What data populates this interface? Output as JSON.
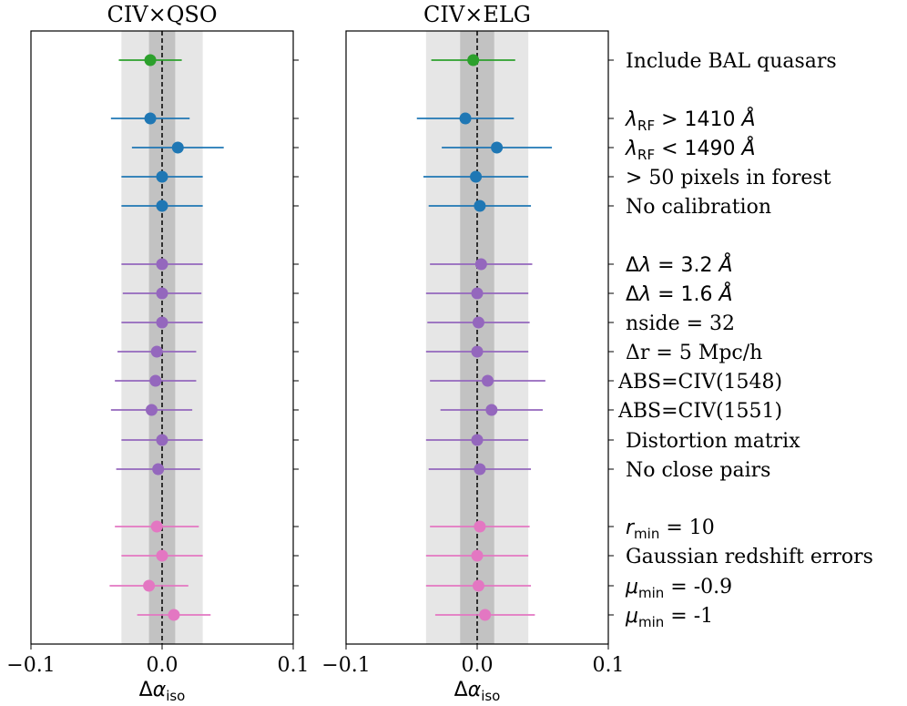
{
  "chart_data": {
    "type": "scatter",
    "subtype": "forest-plot-with-errorbars",
    "xlabel": {
      "base": "Δα",
      "sub": "iso"
    },
    "xlim": [
      -0.1,
      0.1
    ],
    "xticks": [
      -0.1,
      0.0,
      0.1
    ],
    "xtick_labels": [
      "−0.1",
      "0.0",
      "0.1"
    ],
    "reference_line": 0.0,
    "group_colors": {
      "green": "#2ca02c",
      "blue": "#1f77b4",
      "purple": "#9467bd",
      "pink": "#e377c2"
    },
    "band_colors": {
      "outer": "#e6e6e6",
      "inner": "#c2c2c2",
      "line": "#000000"
    },
    "rows": [
      {
        "label": "Include BAL quasars",
        "group": "green"
      },
      {
        "label_html": "<tspan font-style='italic' font-family='DejaVu Sans'>λ</tspan><tspan font-family='DejaVu Sans' font-size='15' dy='5'>RF</tspan><tspan font-family='DejaVu Sans' dy='-5'> &gt; 1410 </tspan><tspan font-style='italic' font-family='DejaVu Sans'>Å</tspan>",
        "label": "λRF > 1410 Å",
        "group": "blue"
      },
      {
        "label_html": "<tspan font-style='italic' font-family='DejaVu Sans'>λ</tspan><tspan font-family='DejaVu Sans' font-size='15' dy='5'>RF</tspan><tspan font-family='DejaVu Sans' dy='-5'> &lt; 1490 </tspan><tspan font-style='italic' font-family='DejaVu Sans'>Å</tspan>",
        "label": "λRF < 1490 Å",
        "group": "blue"
      },
      {
        "label": "> 50 pixels in forest",
        "group": "blue"
      },
      {
        "label": "No calibration",
        "group": "blue"
      },
      {
        "label_html": "<tspan font-family='DejaVu Sans'>Δ</tspan><tspan font-style='italic' font-family='DejaVu Sans'>λ</tspan><tspan font-family='DejaVu Sans'> = 3.2 </tspan><tspan font-style='italic' font-family='DejaVu Sans'>Å</tspan>",
        "label": "Δλ = 3.2 Å",
        "group": "purple"
      },
      {
        "label_html": "<tspan font-family='DejaVu Sans'>Δ</tspan><tspan font-style='italic' font-family='DejaVu Sans'>λ</tspan><tspan font-family='DejaVu Sans'> = 1.6 </tspan><tspan font-style='italic' font-family='DejaVu Sans'>Å</tspan>",
        "label": "Δλ = 1.6 Å",
        "group": "purple"
      },
      {
        "label": "nside = 32",
        "group": "purple"
      },
      {
        "label": "Δr = 5 Mpc/h",
        "group": "purple"
      },
      {
        "label": "ABS=CIV(1548)",
        "group": "purple"
      },
      {
        "label": "ABS=CIV(1551)",
        "group": "purple"
      },
      {
        "label": "Distortion matrix",
        "group": "purple"
      },
      {
        "label": "No close pairs",
        "group": "purple"
      },
      {
        "label_html": "<tspan font-style='italic' font-family='DejaVu Sans'>r</tspan><tspan font-family='DejaVu Sans' font-size='15' dy='5'>min</tspan><tspan dy='-5'> = 10</tspan>",
        "label": "rmin = 10",
        "group": "pink"
      },
      {
        "label": "Gaussian redshift errors",
        "group": "pink"
      },
      {
        "label_html": "<tspan font-style='italic' font-family='DejaVu Sans'>μ</tspan><tspan font-family='DejaVu Sans' font-size='15' dy='5'>min</tspan><tspan dy='-5'> = -0.9</tspan>",
        "label": "μmin = -0.9",
        "group": "pink"
      },
      {
        "label_html": "<tspan font-style='italic' font-family='DejaVu Sans'>μ</tspan><tspan font-family='DejaVu Sans' font-size='15' dy='5'>min</tspan><tspan dy='-5'> = -1</tspan>",
        "label": "μmin = -1",
        "group": "pink"
      }
    ],
    "panels": [
      {
        "title": "CIV×QSO",
        "band_outer": [
          -0.031,
          0.031
        ],
        "band_inner": [
          -0.01,
          0.01
        ],
        "values": [
          -0.009,
          -0.009,
          0.012,
          0.0,
          0.0,
          0.0,
          0.0,
          0.0,
          -0.004,
          -0.005,
          -0.008,
          0.0,
          -0.003,
          -0.004,
          0.0,
          -0.01,
          0.009
        ],
        "err_low": [
          0.024,
          0.03,
          0.035,
          0.031,
          0.031,
          0.031,
          0.03,
          0.031,
          0.03,
          0.031,
          0.031,
          0.031,
          0.032,
          0.032,
          0.031,
          0.03,
          0.028
        ],
        "err_high": [
          0.024,
          0.03,
          0.035,
          0.031,
          0.031,
          0.031,
          0.03,
          0.031,
          0.03,
          0.031,
          0.031,
          0.031,
          0.032,
          0.032,
          0.031,
          0.03,
          0.028
        ]
      },
      {
        "title": "CIV×ELG",
        "band_outer": [
          -0.039,
          0.039
        ],
        "band_inner": [
          -0.013,
          0.013
        ],
        "values": [
          -0.003,
          -0.009,
          0.015,
          -0.001,
          0.002,
          0.003,
          0.0,
          0.001,
          0.0,
          0.008,
          0.011,
          0.0,
          0.002,
          0.002,
          0.0,
          0.001,
          0.006
        ],
        "err_low": [
          0.032,
          0.037,
          0.042,
          0.04,
          0.039,
          0.039,
          0.039,
          0.039,
          0.039,
          0.044,
          0.039,
          0.039,
          0.039,
          0.038,
          0.039,
          0.04,
          0.038
        ],
        "err_high": [
          0.032,
          0.037,
          0.042,
          0.04,
          0.039,
          0.039,
          0.039,
          0.039,
          0.039,
          0.044,
          0.039,
          0.039,
          0.039,
          0.038,
          0.039,
          0.04,
          0.038
        ]
      }
    ]
  }
}
